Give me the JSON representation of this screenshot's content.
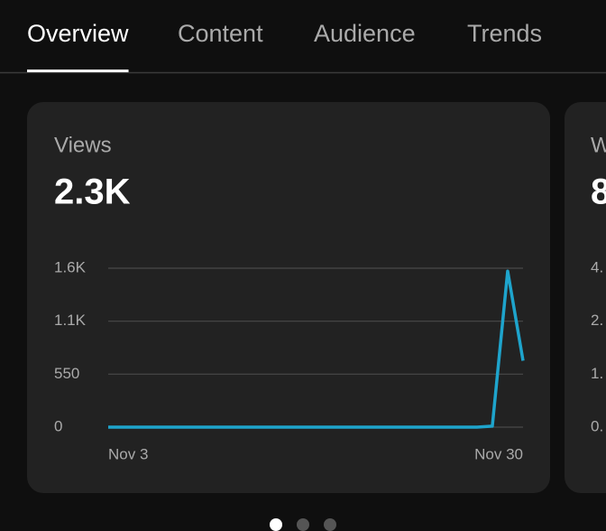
{
  "tabs": [
    "Overview",
    "Content",
    "Audience",
    "Trends"
  ],
  "active_tab": 0,
  "cards": [
    {
      "title": "Views",
      "value": "2.3K",
      "chart": {
        "type": "line",
        "color": "#1ea4cc",
        "categories": [
          "Nov 3",
          null,
          null,
          null,
          null,
          null,
          null,
          null,
          null,
          null,
          null,
          null,
          null,
          null,
          null,
          null,
          null,
          null,
          null,
          null,
          null,
          null,
          null,
          null,
          null,
          null,
          null,
          "Nov 30"
        ],
        "values": [
          0,
          0,
          0,
          0,
          0,
          0,
          0,
          0,
          0,
          0,
          0,
          0,
          0,
          0,
          0,
          0,
          0,
          0,
          0,
          0,
          0,
          0,
          0,
          0,
          0,
          10,
          1620,
          690
        ],
        "ylim": [
          0,
          1650
        ],
        "yticks": [
          0,
          550,
          {
            "value": 1100,
            "label": "1.1K"
          },
          {
            "value": 1650,
            "label": "1.6K"
          }
        ],
        "grid": true
      }
    },
    {
      "title": "W",
      "value": "8",
      "ytick_labels": [
        "0.",
        "1.",
        "2.",
        "4."
      ]
    }
  ],
  "pages": 3,
  "active_page": 0
}
